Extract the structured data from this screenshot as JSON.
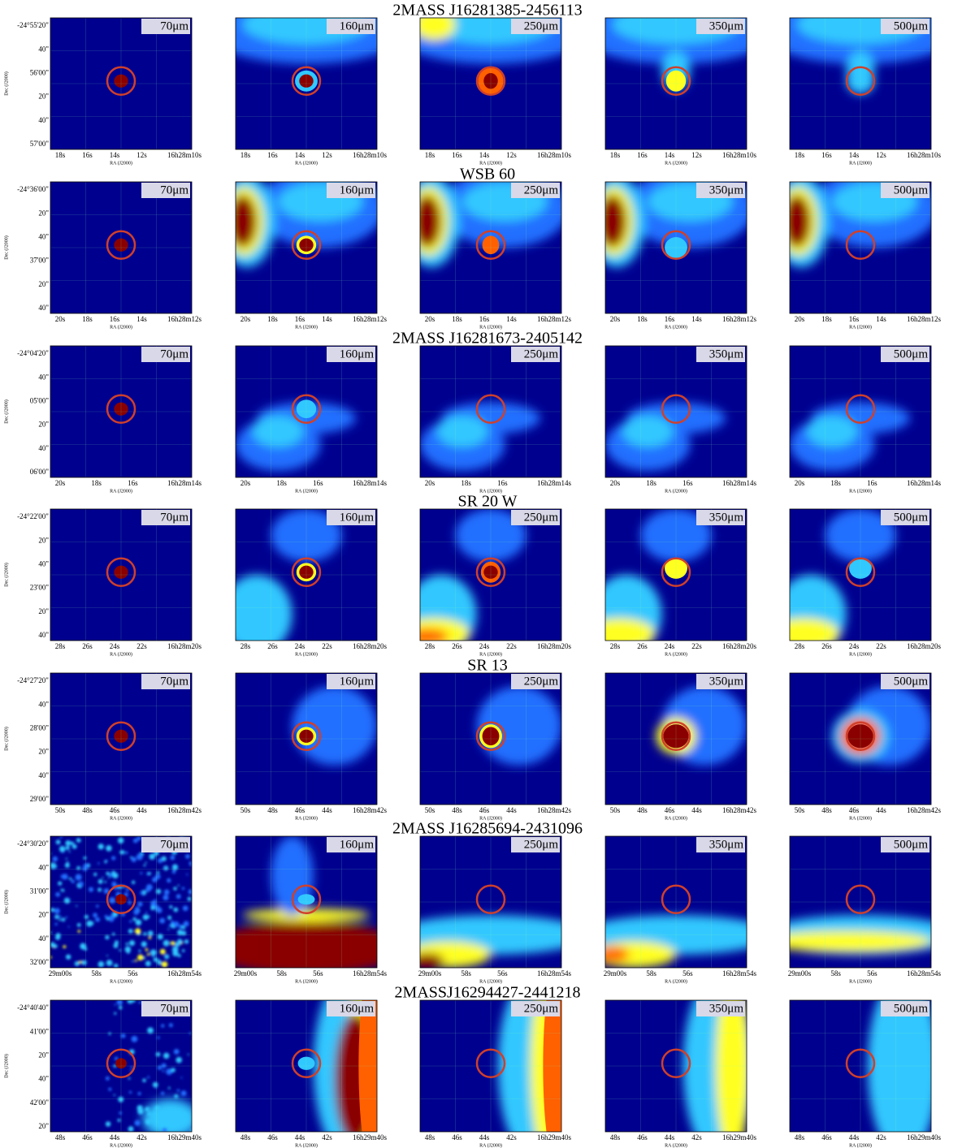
{
  "axis_labels": {
    "x": "RA (J2000)",
    "y": "Dec (J2000)"
  },
  "bands": [
    "70μm",
    "160μm",
    "250μm",
    "350μm",
    "500μm"
  ],
  "rows": [
    {
      "title": "2MASS J16281385-2456113",
      "dec_ticks": [
        "-24°55'20\"",
        "40\"",
        "56'00\"",
        "20\"",
        "40\"",
        "57'00\""
      ],
      "ra_ticks": [
        "18s",
        "16s",
        "14s",
        "12s",
        "16h28m10s"
      ]
    },
    {
      "title": "WSB 60",
      "dec_ticks": [
        "-24°36'00\"",
        "20\"",
        "40\"",
        "37'00\"",
        "20\"",
        "40\""
      ],
      "ra_ticks": [
        "20s",
        "18s",
        "16s",
        "14s",
        "16h28m12s"
      ]
    },
    {
      "title": "2MASS J16281673-2405142",
      "dec_ticks": [
        "-24°04'20\"",
        "40\"",
        "05'00\"",
        "20\"",
        "40\"",
        "06'00\""
      ],
      "ra_ticks": [
        "20s",
        "18s",
        "16s",
        "16h28m14s"
      ]
    },
    {
      "title": "SR 20 W",
      "dec_ticks": [
        "-24°22'00\"",
        "20\"",
        "40\"",
        "23'00\"",
        "20\"",
        "40\""
      ],
      "ra_ticks": [
        "28s",
        "26s",
        "24s",
        "22s",
        "16h28m20s"
      ]
    },
    {
      "title": "SR 13",
      "dec_ticks": [
        "-24°27'20\"",
        "40\"",
        "28'00\"",
        "20\"",
        "40\"",
        "29'00\""
      ],
      "ra_ticks": [
        "50s",
        "48s",
        "46s",
        "44s",
        "16h28m42s"
      ]
    },
    {
      "title": "2MASS J16285694-2431096",
      "dec_ticks": [
        "-24°30'20\"",
        "40\"",
        "31'00\"",
        "20\"",
        "40\"",
        "32'00\""
      ],
      "ra_ticks": [
        "29m00s",
        "58s",
        "56s",
        "16h28m54s"
      ]
    },
    {
      "title": "2MASSJ16294427-2441218",
      "dec_ticks": [
        "-24°40'40\"",
        "41'00\"",
        "20\"",
        "40\"",
        "42'00\"",
        "20\""
      ],
      "ra_ticks": [
        "48s",
        "46s",
        "44s",
        "42s",
        "16h29m40s"
      ]
    }
  ]
}
